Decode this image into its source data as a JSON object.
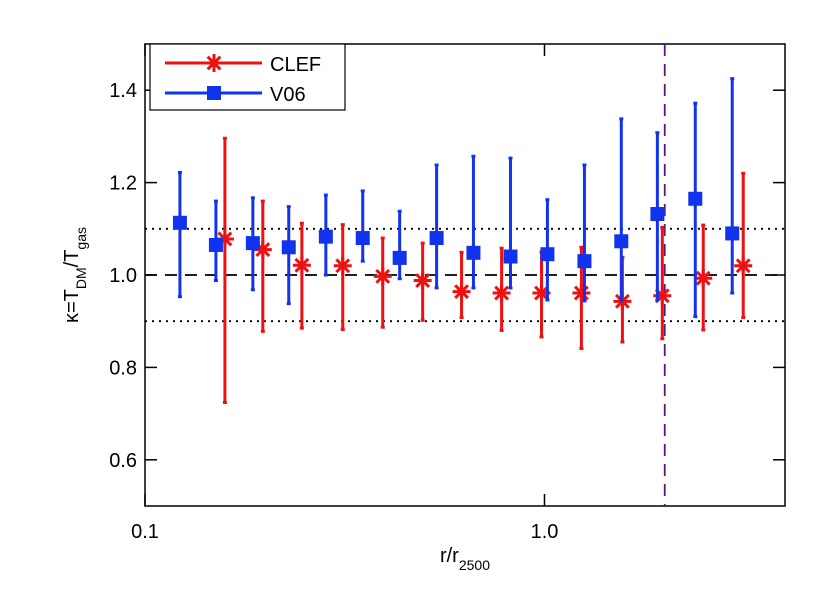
{
  "chart_data": {
    "type": "errorbar",
    "xlabel": [
      {
        "text": "r/r"
      },
      {
        "text": "2500",
        "sub": true
      }
    ],
    "ylabel": [
      {
        "text": "κ=T"
      },
      {
        "text": "DM",
        "sub": true
      },
      {
        "text": "/T"
      },
      {
        "text": "gas",
        "sub": true
      }
    ],
    "xlog": true,
    "xlim": [
      0.1,
      4.0
    ],
    "xticks": [
      0.1,
      {
        "value": 1,
        "label": "1.0"
      }
    ],
    "ylim": [
      0.5,
      1.5
    ],
    "yticks": [
      0.6,
      0.8,
      {
        "value": 1,
        "label": "1.0"
      },
      1.2,
      1.4
    ],
    "hlines": [
      {
        "y": 1.0,
        "style": "dashed"
      },
      {
        "y": 1.1,
        "style": "dotted"
      },
      {
        "y": 0.9,
        "style": "dotted"
      }
    ],
    "vlines": [
      {
        "x": 2.0,
        "style": "dashed",
        "color": "#5a1a7a"
      }
    ],
    "legend": "upper left",
    "series": [
      {
        "name": "CLEF",
        "color": "#ee1111",
        "marker": "asterisk",
        "x": [
          0.1585,
          0.1972,
          0.247,
          0.3126,
          0.3936,
          0.4955,
          0.62,
          0.781,
          0.983,
          1.237,
          1.567,
          1.972,
          2.497,
          3.144
        ],
        "values": [
          1.078,
          1.055,
          1.021,
          1.02,
          0.997,
          0.988,
          0.964,
          0.961,
          0.961,
          0.961,
          0.943,
          0.955,
          0.993,
          1.02
        ],
        "upper": [
          1.296,
          1.16,
          1.112,
          1.109,
          1.08,
          1.069,
          1.049,
          1.058,
          1.05,
          1.06,
          1.038,
          1.103,
          1.108,
          1.22
        ],
        "lower": [
          0.724,
          0.878,
          0.885,
          0.882,
          0.887,
          0.902,
          0.908,
          0.88,
          0.866,
          0.841,
          0.855,
          0.862,
          0.881,
          0.908
        ]
      },
      {
        "name": "V06",
        "color": "#1133ee",
        "marker": "square",
        "x": [
          0.1223,
          0.1505,
          0.1862,
          0.229,
          0.2836,
          0.3508,
          0.434,
          0.537,
          0.664,
          0.822,
          1.017,
          1.259,
          1.557,
          1.917,
          2.385,
          2.951
        ],
        "values": [
          1.113,
          1.065,
          1.069,
          1.06,
          1.083,
          1.08,
          1.037,
          1.08,
          1.048,
          1.04,
          1.045,
          1.03,
          1.073,
          1.132,
          1.165,
          1.09
        ],
        "upper": [
          1.222,
          1.16,
          1.167,
          1.148,
          1.173,
          1.182,
          1.138,
          1.238,
          1.257,
          1.253,
          1.163,
          1.238,
          1.338,
          1.308,
          1.372,
          1.425
        ],
        "lower": [
          0.953,
          0.988,
          0.968,
          0.938,
          1.0,
          1.03,
          0.992,
          0.972,
          0.972,
          0.972,
          0.946,
          0.944,
          0.946,
          0.946,
          0.91,
          0.961
        ]
      }
    ]
  }
}
